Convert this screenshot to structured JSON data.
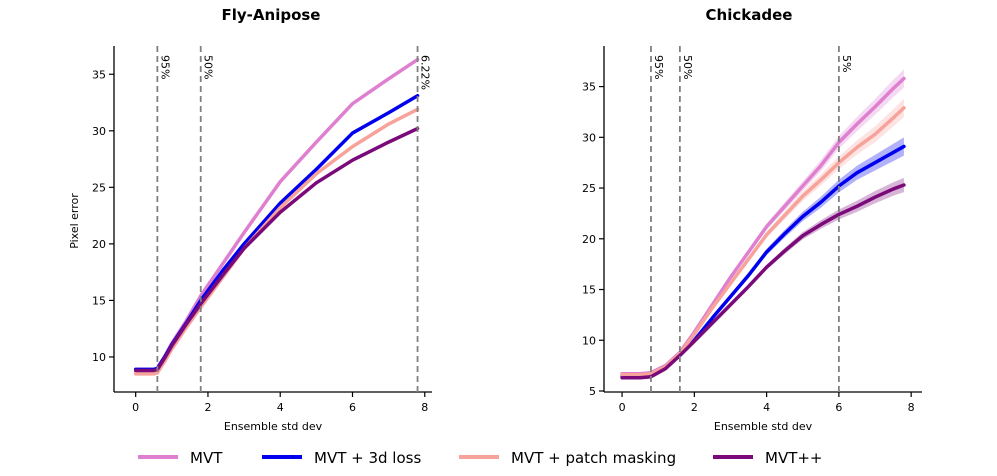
{
  "chart_data": [
    {
      "type": "line",
      "title": "Fly-Anipose",
      "xlabel": "Ensemble std dev",
      "ylabel": "Pixel error",
      "xlim": [
        -0.6,
        8.2
      ],
      "ylim": [
        6.9,
        37.5
      ],
      "xticks": [
        0,
        2,
        4,
        6,
        8
      ],
      "yticks": [
        10,
        15,
        20,
        25,
        30,
        35
      ],
      "vlines": [
        {
          "x": 0.6,
          "label": "95%"
        },
        {
          "x": 1.8,
          "label": "50%"
        },
        {
          "x": 7.8,
          "label": "6.22%"
        }
      ],
      "series": [
        {
          "name": "MVT",
          "color": "#df7fd0",
          "x": [
            0,
            0.25,
            0.5,
            0.6,
            0.8,
            1.0,
            1.4,
            1.8,
            2.4,
            3.0,
            4.0,
            5.0,
            6.0,
            7.0,
            7.8
          ],
          "y": [
            8.9,
            8.9,
            8.9,
            9.0,
            10.0,
            11.2,
            13.2,
            15.4,
            18.2,
            21.0,
            25.5,
            29.0,
            32.4,
            34.6,
            36.3
          ]
        },
        {
          "name": "MVT + 3d loss",
          "color": "#0000ee",
          "x": [
            0,
            0.25,
            0.5,
            0.6,
            0.8,
            1.0,
            1.4,
            1.8,
            2.4,
            3.0,
            4.0,
            5.0,
            6.0,
            7.0,
            7.8
          ],
          "y": [
            8.9,
            8.9,
            8.9,
            9.0,
            10.0,
            11.1,
            13.0,
            15.0,
            17.6,
            20.0,
            23.6,
            26.6,
            29.8,
            31.6,
            33.1
          ]
        },
        {
          "name": "MVT + patch masking",
          "color": "#f7a29a",
          "x": [
            0,
            0.25,
            0.5,
            0.6,
            0.8,
            1.0,
            1.4,
            1.8,
            2.4,
            3.0,
            4.0,
            5.0,
            6.0,
            7.0,
            7.8
          ],
          "y": [
            8.5,
            8.5,
            8.5,
            8.6,
            9.6,
            10.7,
            12.6,
            14.4,
            17.0,
            19.6,
            23.2,
            26.2,
            28.6,
            30.6,
            31.9
          ]
        },
        {
          "name": "MVT++",
          "color": "#7a0a7a",
          "x": [
            0,
            0.25,
            0.5,
            0.6,
            0.8,
            1.0,
            1.4,
            1.8,
            2.4,
            3.0,
            4.0,
            5.0,
            6.0,
            7.0,
            7.8
          ],
          "y": [
            8.8,
            8.8,
            8.8,
            8.9,
            9.9,
            11.0,
            12.9,
            14.7,
            17.2,
            19.6,
            22.8,
            25.4,
            27.4,
            29.0,
            30.2
          ]
        }
      ]
    },
    {
      "type": "line",
      "title": "Chickadee",
      "xlabel": "Ensemble std dev",
      "ylabel": "",
      "xlim": [
        -0.5,
        8.3
      ],
      "ylim": [
        4.9,
        39.0
      ],
      "xticks": [
        0,
        2,
        4,
        6,
        8
      ],
      "yticks": [
        5,
        10,
        15,
        20,
        25,
        30,
        35
      ],
      "vlines": [
        {
          "x": 0.8,
          "label": "95%"
        },
        {
          "x": 1.6,
          "label": "50%"
        },
        {
          "x": 6.0,
          "label": "5%"
        }
      ],
      "series": [
        {
          "name": "MVT",
          "color": "#df7fd0",
          "band": 0.9,
          "x": [
            0,
            0.5,
            0.8,
            1.2,
            1.6,
            2.0,
            2.5,
            3.0,
            3.5,
            4.0,
            4.5,
            5.0,
            5.5,
            6.0,
            6.5,
            7.0,
            7.5,
            7.8
          ],
          "y": [
            6.7,
            6.7,
            6.8,
            7.5,
            8.8,
            10.8,
            13.5,
            16.2,
            18.7,
            21.2,
            23.2,
            25.2,
            27.2,
            29.5,
            31.3,
            33.0,
            34.8,
            35.8
          ]
        },
        {
          "name": "MVT + 3d loss",
          "color": "#0000ee",
          "band": 0.9,
          "x": [
            0,
            0.5,
            0.8,
            1.2,
            1.6,
            2.0,
            2.5,
            3.0,
            3.5,
            4.0,
            4.5,
            5.0,
            5.5,
            6.0,
            6.5,
            7.0,
            7.5,
            7.8
          ],
          "y": [
            6.5,
            6.5,
            6.6,
            7.3,
            8.5,
            10.0,
            12.2,
            14.3,
            16.4,
            18.7,
            20.5,
            22.2,
            23.6,
            25.2,
            26.5,
            27.5,
            28.5,
            29.1
          ]
        },
        {
          "name": "MVT + patch masking",
          "color": "#f7a29a",
          "band": 0.9,
          "x": [
            0,
            0.5,
            0.8,
            1.2,
            1.6,
            2.0,
            2.5,
            3.0,
            3.5,
            4.0,
            4.5,
            5.0,
            5.5,
            6.0,
            6.5,
            7.0,
            7.5,
            7.8
          ],
          "y": [
            6.6,
            6.6,
            6.7,
            7.4,
            8.7,
            10.6,
            13.2,
            15.6,
            18.0,
            20.4,
            22.3,
            24.2,
            25.8,
            27.5,
            29.0,
            30.3,
            31.9,
            32.9
          ]
        },
        {
          "name": "MVT++",
          "color": "#7a0a7a",
          "band": 0.7,
          "x": [
            0,
            0.5,
            0.8,
            1.2,
            1.6,
            2.0,
            2.5,
            3.0,
            3.5,
            4.0,
            4.5,
            5.0,
            5.5,
            6.0,
            6.5,
            7.0,
            7.5,
            7.8
          ],
          "y": [
            6.3,
            6.3,
            6.4,
            7.2,
            8.5,
            9.9,
            11.7,
            13.5,
            15.3,
            17.2,
            18.8,
            20.3,
            21.4,
            22.4,
            23.2,
            24.1,
            24.9,
            25.3
          ]
        }
      ]
    }
  ],
  "legend": [
    {
      "label": "MVT",
      "color": "#df7fd0"
    },
    {
      "label": "MVT + 3d loss",
      "color": "#0000ee"
    },
    {
      "label": "MVT + patch masking",
      "color": "#f7a29a"
    },
    {
      "label": "MVT++",
      "color": "#7a0a7a"
    }
  ]
}
